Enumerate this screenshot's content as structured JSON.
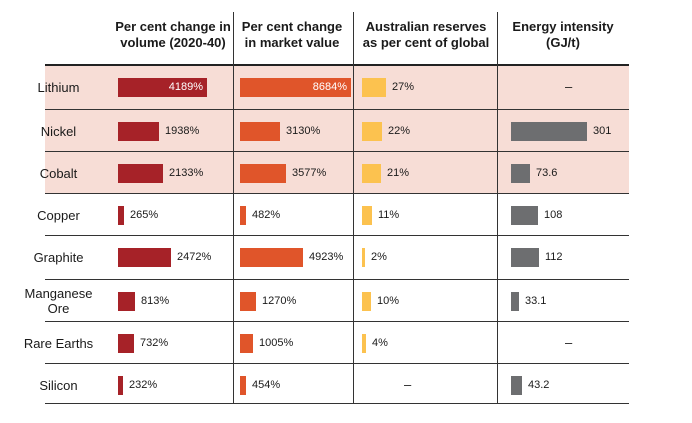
{
  "headers": {
    "mineral": "",
    "volume": "Per cent change in\nvolume (2020-40)",
    "market": "Per cent change\nin market value",
    "reserves": "Australian reserves\nas per cent of global",
    "energy": "Energy intensity\n(GJ/t)"
  },
  "colors": {
    "volume": "#a62228",
    "market": "#e0552a",
    "reserves": "#fcc24f",
    "energy": "#6d6e70",
    "highlight": "#f7ddd6"
  },
  "chart_data": {
    "type": "table",
    "rows": [
      {
        "mineral": "Lithium",
        "volume": 4189,
        "volume_label": "4189%",
        "market": 8684,
        "market_label": "8684%",
        "reserves": 27,
        "reserves_label": "27%",
        "energy": null,
        "energy_label": "–",
        "highlight": true
      },
      {
        "mineral": "Nickel",
        "volume": 1938,
        "volume_label": "1938%",
        "market": 3130,
        "market_label": "3130%",
        "reserves": 22,
        "reserves_label": "22%",
        "energy": 301,
        "energy_label": "301",
        "highlight": true
      },
      {
        "mineral": "Cobalt",
        "volume": 2133,
        "volume_label": "2133%",
        "market": 3577,
        "market_label": "3577%",
        "reserves": 21,
        "reserves_label": "21%",
        "energy": 73.6,
        "energy_label": "73.6",
        "highlight": true
      },
      {
        "mineral": "Copper",
        "volume": 265,
        "volume_label": "265%",
        "market": 482,
        "market_label": "482%",
        "reserves": 11,
        "reserves_label": "11%",
        "energy": 108,
        "energy_label": "108",
        "highlight": false
      },
      {
        "mineral": "Graphite",
        "volume": 2472,
        "volume_label": "2472%",
        "market": 4923,
        "market_label": "4923%",
        "reserves": 2,
        "reserves_label": "2%",
        "energy": 112,
        "energy_label": "112",
        "highlight": false
      },
      {
        "mineral": "Manganese\nOre",
        "volume": 813,
        "volume_label": "813%",
        "market": 1270,
        "market_label": "1270%",
        "reserves": 10,
        "reserves_label": "10%",
        "energy": 33.1,
        "energy_label": "33.1",
        "highlight": false
      },
      {
        "mineral": "Rare Earths",
        "volume": 732,
        "volume_label": "732%",
        "market": 1005,
        "market_label": "1005%",
        "reserves": 4,
        "reserves_label": "4%",
        "energy": null,
        "energy_label": "–",
        "highlight": false
      },
      {
        "mineral": "Silicon",
        "volume": 232,
        "volume_label": "232%",
        "market": 454,
        "market_label": "454%",
        "reserves": null,
        "reserves_label": "–",
        "energy": 43.2,
        "energy_label": "43.2",
        "highlight": false
      }
    ]
  }
}
